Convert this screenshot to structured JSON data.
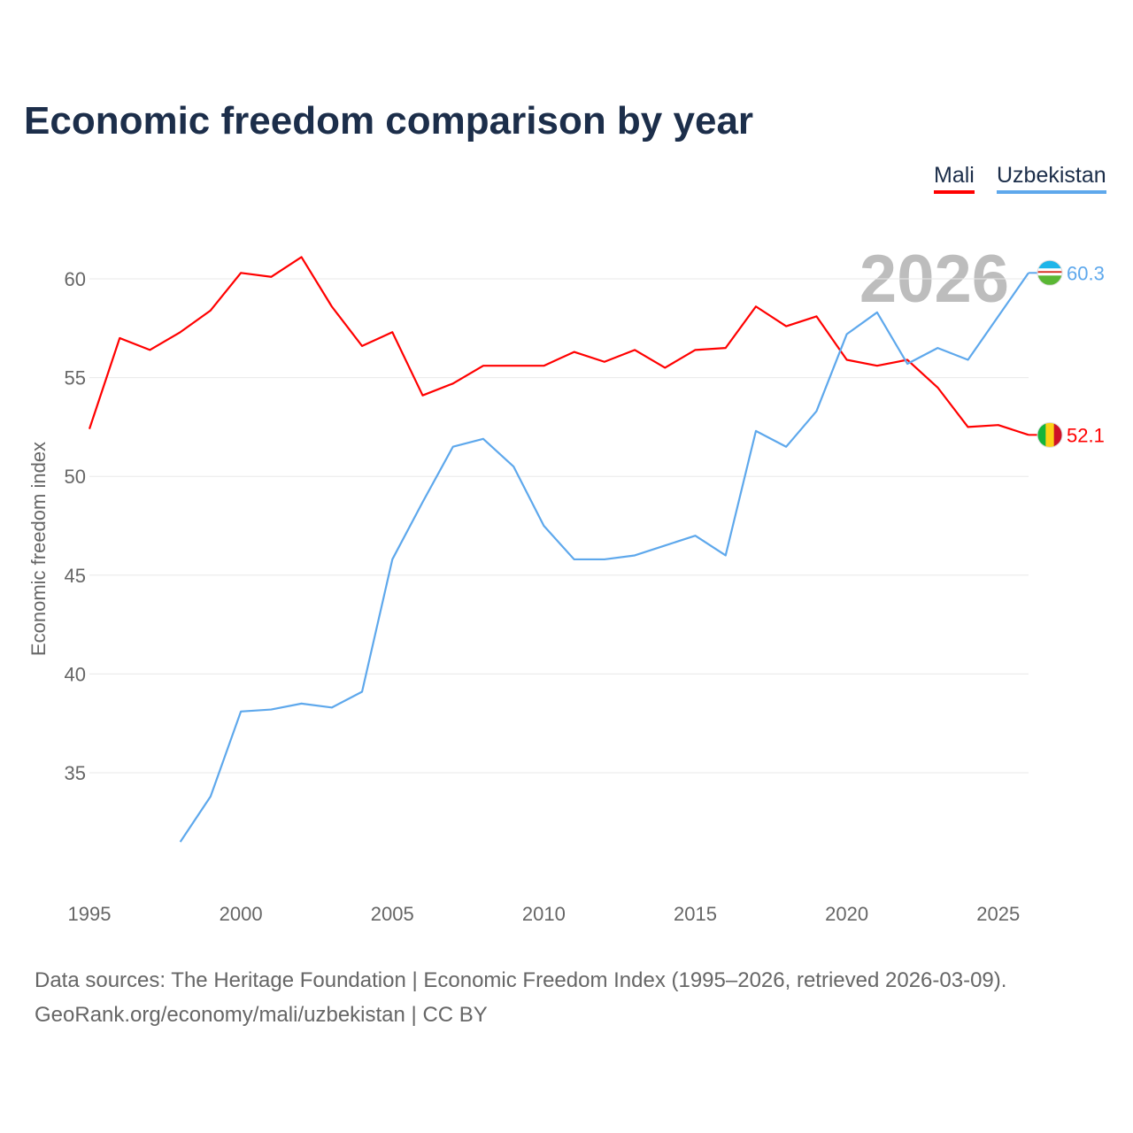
{
  "chart_data": {
    "type": "line",
    "title": "Economic freedom comparison by year",
    "xlabel": "",
    "ylabel": "Economic freedom index",
    "xlim": [
      1995,
      2026
    ],
    "ylim": [
      29.3,
      63
    ],
    "xticks": [
      1995,
      2000,
      2005,
      2010,
      2015,
      2020,
      2025
    ],
    "yticks": [
      35,
      40,
      45,
      50,
      55,
      60
    ],
    "grid": true,
    "legend_position": "top-right",
    "current_year_label": "2026",
    "series": [
      {
        "name": "Mali",
        "color": "#ff0000",
        "end_label": "52.1",
        "x": [
          1995,
          1996,
          1997,
          1998,
          1999,
          2000,
          2001,
          2002,
          2003,
          2004,
          2005,
          2006,
          2007,
          2008,
          2009,
          2010,
          2011,
          2012,
          2013,
          2014,
          2015,
          2016,
          2017,
          2018,
          2019,
          2020,
          2021,
          2022,
          2023,
          2024,
          2025,
          2026
        ],
        "values": [
          52.4,
          57.0,
          56.4,
          57.3,
          58.4,
          60.3,
          60.1,
          61.1,
          58.6,
          56.6,
          57.3,
          54.1,
          54.7,
          55.6,
          55.6,
          55.6,
          56.3,
          55.8,
          56.4,
          55.5,
          56.4,
          56.5,
          58.6,
          57.6,
          58.1,
          55.9,
          55.6,
          55.9,
          54.5,
          52.5,
          52.6,
          52.1
        ]
      },
      {
        "name": "Uzbekistan",
        "color": "#5ea8ec",
        "end_label": "60.3",
        "x": [
          1998,
          1999,
          2000,
          2001,
          2002,
          2003,
          2004,
          2005,
          2006,
          2007,
          2008,
          2009,
          2010,
          2011,
          2012,
          2013,
          2014,
          2015,
          2016,
          2017,
          2018,
          2019,
          2020,
          2021,
          2022,
          2023,
          2024,
          2025,
          2026
        ],
        "values": [
          31.5,
          33.8,
          38.1,
          38.2,
          38.5,
          38.3,
          39.1,
          45.8,
          48.7,
          51.5,
          51.9,
          50.5,
          47.5,
          45.8,
          45.8,
          46.0,
          46.5,
          47.0,
          46.0,
          52.3,
          51.5,
          53.3,
          57.2,
          58.3,
          55.7,
          56.5,
          55.9,
          58.1,
          60.3
        ]
      }
    ]
  },
  "source": {
    "line1": "Data sources: The Heritage Foundation | Economic Freedom Index (1995–2026, retrieved 2026-03-09).",
    "line2": "GeoRank.org/economy/mali/uzbekistan | CC BY"
  }
}
